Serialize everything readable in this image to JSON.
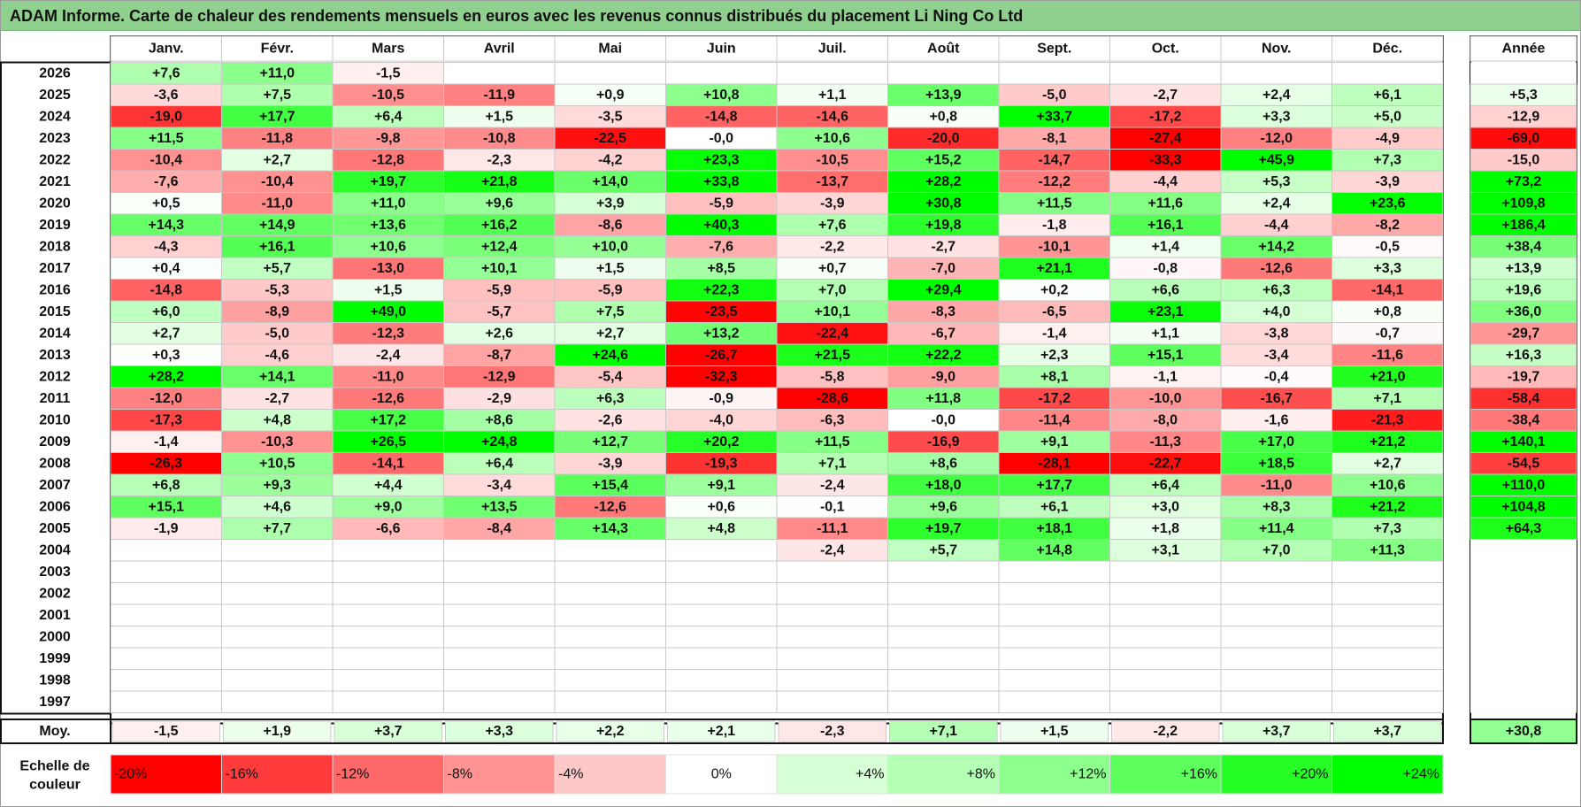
{
  "title": "ADAM Informe. Carte de chaleur des rendements mensuels en euros avec les revenus connus distribués du placement Li Ning Co Ltd",
  "chart_data": {
    "type": "heatmap",
    "months": [
      "Janv.",
      "Févr.",
      "Mars",
      "Avril",
      "Mai",
      "Juin",
      "Juil.",
      "Août",
      "Sept.",
      "Oct.",
      "Nov.",
      "Déc."
    ],
    "annual_header": "Année",
    "average_label": "Moy.",
    "rows": [
      {
        "year": "2026",
        "values": [
          "+7,6",
          "+11,0",
          "-1,5",
          "",
          "",
          "",
          "",
          "",
          "",
          "",
          "",
          ""
        ],
        "annual": ""
      },
      {
        "year": "2025",
        "values": [
          "-3,6",
          "+7,5",
          "-10,5",
          "-11,9",
          "+0,9",
          "+10,8",
          "+1,1",
          "+13,9",
          "-5,0",
          "-2,7",
          "+2,4",
          "+6,1"
        ],
        "annual": "+5,3"
      },
      {
        "year": "2024",
        "values": [
          "-19,0",
          "+17,7",
          "+6,4",
          "+1,5",
          "-3,5",
          "-14,8",
          "-14,6",
          "+0,8",
          "+33,7",
          "-17,2",
          "+3,3",
          "+5,0"
        ],
        "annual": "-12,9"
      },
      {
        "year": "2023",
        "values": [
          "+11,5",
          "-11,8",
          "-9,8",
          "-10,8",
          "-22,5",
          "-0,0",
          "+10,6",
          "-20,0",
          "-8,1",
          "-27,4",
          "-12,0",
          "-4,9"
        ],
        "annual": "-69,0"
      },
      {
        "year": "2022",
        "values": [
          "-10,4",
          "+2,7",
          "-12,8",
          "-2,3",
          "-4,2",
          "+23,3",
          "-10,5",
          "+15,2",
          "-14,7",
          "-33,3",
          "+45,9",
          "+7,3"
        ],
        "annual": "-15,0"
      },
      {
        "year": "2021",
        "values": [
          "-7,6",
          "-10,4",
          "+19,7",
          "+21,8",
          "+14,0",
          "+33,8",
          "-13,7",
          "+28,2",
          "-12,2",
          "-4,4",
          "+5,3",
          "-3,9"
        ],
        "annual": "+73,2"
      },
      {
        "year": "2020",
        "values": [
          "+0,5",
          "-11,0",
          "+11,0",
          "+9,6",
          "+3,9",
          "-5,9",
          "-3,9",
          "+30,8",
          "+11,5",
          "+11,6",
          "+2,4",
          "+23,6"
        ],
        "annual": "+109,8"
      },
      {
        "year": "2019",
        "values": [
          "+14,3",
          "+14,9",
          "+13,6",
          "+16,2",
          "-8,6",
          "+40,3",
          "+7,6",
          "+19,8",
          "-1,8",
          "+16,1",
          "-4,4",
          "-8,2"
        ],
        "annual": "+186,4"
      },
      {
        "year": "2018",
        "values": [
          "-4,3",
          "+16,1",
          "+10,6",
          "+12,4",
          "+10,0",
          "-7,6",
          "-2,2",
          "-2,7",
          "-10,1",
          "+1,4",
          "+14,2",
          "-0,5"
        ],
        "annual": "+38,4"
      },
      {
        "year": "2017",
        "values": [
          "+0,4",
          "+5,7",
          "-13,0",
          "+10,1",
          "+1,5",
          "+8,5",
          "+0,7",
          "-7,0",
          "+21,1",
          "-0,8",
          "-12,6",
          "+3,3"
        ],
        "annual": "+13,9"
      },
      {
        "year": "2016",
        "values": [
          "-14,8",
          "-5,3",
          "+1,5",
          "-5,9",
          "-5,9",
          "+22,3",
          "+7,0",
          "+29,4",
          "+0,2",
          "+6,6",
          "+6,3",
          "-14,1"
        ],
        "annual": "+19,6"
      },
      {
        "year": "2015",
        "values": [
          "+6,0",
          "-8,9",
          "+49,0",
          "-5,7",
          "+7,5",
          "-23,5",
          "+10,1",
          "-8,3",
          "-6,5",
          "+23,1",
          "+4,0",
          "+0,8"
        ],
        "annual": "+36,0"
      },
      {
        "year": "2014",
        "values": [
          "+2,7",
          "-5,0",
          "-12,3",
          "+2,6",
          "+2,7",
          "+13,2",
          "-22,4",
          "-6,7",
          "-1,4",
          "+1,1",
          "-3,8",
          "-0,7"
        ],
        "annual": "-29,7"
      },
      {
        "year": "2013",
        "values": [
          "+0,3",
          "-4,6",
          "-2,4",
          "-8,7",
          "+24,6",
          "-26,7",
          "+21,5",
          "+22,2",
          "+2,3",
          "+15,1",
          "-3,4",
          "-11,6"
        ],
        "annual": "+16,3"
      },
      {
        "year": "2012",
        "values": [
          "+28,2",
          "+14,1",
          "-11,0",
          "-12,9",
          "-5,4",
          "-32,3",
          "-5,8",
          "-9,0",
          "+8,1",
          "-1,1",
          "-0,4",
          "+21,0"
        ],
        "annual": "-19,7"
      },
      {
        "year": "2011",
        "values": [
          "-12,0",
          "-2,7",
          "-12,6",
          "-2,9",
          "+6,3",
          "-0,9",
          "-28,6",
          "+11,8",
          "-17,2",
          "-10,0",
          "-16,7",
          "+7,1"
        ],
        "annual": "-58,4"
      },
      {
        "year": "2010",
        "values": [
          "-17,3",
          "+4,8",
          "+17,2",
          "+8,6",
          "-2,6",
          "-4,0",
          "-6,3",
          "-0,0",
          "-11,4",
          "-8,0",
          "-1,6",
          "-21,3"
        ],
        "annual": "-38,4"
      },
      {
        "year": "2009",
        "values": [
          "-1,4",
          "-10,3",
          "+26,5",
          "+24,8",
          "+12,7",
          "+20,2",
          "+11,5",
          "-16,9",
          "+9,1",
          "-11,3",
          "+17,0",
          "+21,2"
        ],
        "annual": "+140,1"
      },
      {
        "year": "2008",
        "values": [
          "-26,3",
          "+10,5",
          "-14,1",
          "+6,4",
          "-3,9",
          "-19,3",
          "+7,1",
          "+8,6",
          "-28,1",
          "-22,7",
          "+18,5",
          "+2,7"
        ],
        "annual": "-54,5"
      },
      {
        "year": "2007",
        "values": [
          "+6,8",
          "+9,3",
          "+4,4",
          "-3,4",
          "+15,4",
          "+9,1",
          "-2,4",
          "+18,0",
          "+17,7",
          "+6,4",
          "-11,0",
          "+10,6"
        ],
        "annual": "+110,0"
      },
      {
        "year": "2006",
        "values": [
          "+15,1",
          "+4,6",
          "+9,0",
          "+13,5",
          "-12,6",
          "+0,6",
          "-0,1",
          "+9,6",
          "+6,1",
          "+3,0",
          "+8,3",
          "+21,2"
        ],
        "annual": "+104,8"
      },
      {
        "year": "2005",
        "values": [
          "-1,9",
          "+7,7",
          "-6,6",
          "-8,4",
          "+14,3",
          "+4,8",
          "-11,1",
          "+19,7",
          "+18,1",
          "+1,8",
          "+11,4",
          "+7,3"
        ],
        "annual": "+64,3"
      },
      {
        "year": "2004",
        "values": [
          "",
          "",
          "",
          "",
          "",
          "",
          "-2,4",
          "+5,7",
          "+14,8",
          "+3,1",
          "+7,0",
          "+11,3"
        ],
        "annual": ""
      },
      {
        "year": "2003",
        "values": [
          "",
          "",
          "",
          "",
          "",
          "",
          "",
          "",
          "",
          "",
          "",
          ""
        ],
        "annual": ""
      },
      {
        "year": "2002",
        "values": [
          "",
          "",
          "",
          "",
          "",
          "",
          "",
          "",
          "",
          "",
          "",
          ""
        ],
        "annual": ""
      },
      {
        "year": "2001",
        "values": [
          "",
          "",
          "",
          "",
          "",
          "",
          "",
          "",
          "",
          "",
          "",
          ""
        ],
        "annual": ""
      },
      {
        "year": "2000",
        "values": [
          "",
          "",
          "",
          "",
          "",
          "",
          "",
          "",
          "",
          "",
          "",
          ""
        ],
        "annual": ""
      },
      {
        "year": "1999",
        "values": [
          "",
          "",
          "",
          "",
          "",
          "",
          "",
          "",
          "",
          "",
          "",
          ""
        ],
        "annual": ""
      },
      {
        "year": "1998",
        "values": [
          "",
          "",
          "",
          "",
          "",
          "",
          "",
          "",
          "",
          "",
          "",
          ""
        ],
        "annual": ""
      },
      {
        "year": "1997",
        "values": [
          "",
          "",
          "",
          "",
          "",
          "",
          "",
          "",
          "",
          "",
          "",
          ""
        ],
        "annual": ""
      }
    ],
    "average": {
      "values": [
        "-1,5",
        "+1,9",
        "+3,7",
        "+3,3",
        "+2,2",
        "+2,1",
        "-2,3",
        "+7,1",
        "+1,5",
        "-2,2",
        "+3,7",
        "+3,7"
      ],
      "annual": "+30,8"
    },
    "legend": {
      "label_line1": "Echelle de",
      "label_line2": "couleur",
      "steps": [
        {
          "label": "-20%",
          "color": "#ff0000"
        },
        {
          "label": "-16%",
          "color": "#ff3b3b"
        },
        {
          "label": "-12%",
          "color": "#ff6868"
        },
        {
          "label": "-8%",
          "color": "#ff9292"
        },
        {
          "label": "-4%",
          "color": "#ffc8c8"
        },
        {
          "label": "0%",
          "color": "#ffffff"
        },
        {
          "label": "+4%",
          "color": "#d6ffd6"
        },
        {
          "label": "+8%",
          "color": "#b3ffb3"
        },
        {
          "label": "+12%",
          "color": "#8cff8c"
        },
        {
          "label": "+16%",
          "color": "#5cff5c"
        },
        {
          "label": "+20%",
          "color": "#26ff26"
        },
        {
          "label": "+24%",
          "color": "#00ff00"
        }
      ]
    },
    "scale": {
      "neg_color": "#ff0000",
      "pos_color": "#00ff00",
      "zero_color": "#ffffff"
    }
  }
}
